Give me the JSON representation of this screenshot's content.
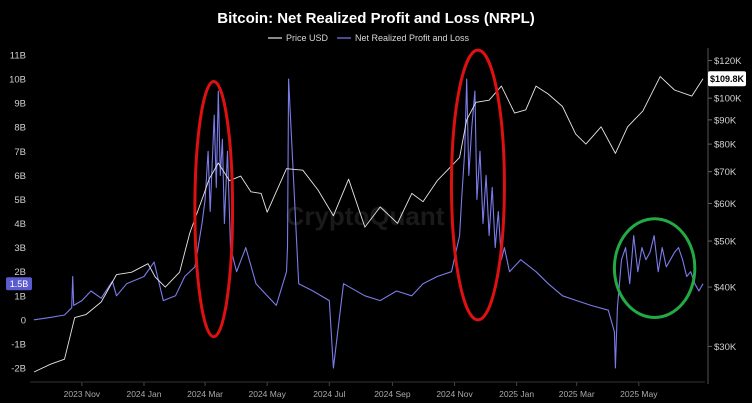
{
  "chart_data": {
    "type": "line",
    "title": "Bitcoin: Net Realized Profit and Loss (NRPL)",
    "watermark": "CryptoQuant",
    "legend": [
      {
        "name": "Price USD",
        "color": "#e6e6e6"
      },
      {
        "name": "Net Realized Profit and Loss",
        "color": "#7b7bea"
      }
    ],
    "legend_position": "top-center",
    "grid": false,
    "y_left": {
      "ticks": [
        "-2B",
        "-1B",
        "0",
        "1B",
        "2B",
        "3B",
        "4B",
        "5B",
        "6B",
        "7B",
        "8B",
        "9B",
        "10B",
        "11B"
      ],
      "tick_values": [
        -2,
        -1,
        0,
        1,
        2,
        3,
        4,
        5,
        6,
        7,
        8,
        9,
        10,
        11
      ],
      "range": [
        -2,
        11
      ],
      "unit": "B"
    },
    "y_right": {
      "ticks": [
        "$30K",
        "$40K",
        "$50K",
        "$60K",
        "$70K",
        "$80K",
        "$90K",
        "$100K",
        "$120K"
      ],
      "tick_values": [
        30,
        40,
        50,
        60,
        70,
        80,
        90,
        100,
        120
      ],
      "range": [
        25,
        130
      ],
      "scale": "log",
      "unit": "K USD"
    },
    "x_axis": {
      "ticks": [
        "2023 Nov",
        "2024 Jan",
        "2024 Mar",
        "2024 May",
        "2024 Jul",
        "2024 Sep",
        "2024 Nov",
        "2025 Jan",
        "2025 Mar",
        "2025 May"
      ],
      "tick_dates": [
        "2023-11",
        "2024-01",
        "2024-03",
        "2024-05",
        "2024-07",
        "2024-09",
        "2024-11",
        "2025-01",
        "2025-03",
        "2025-05"
      ],
      "range": [
        "2023-09-15",
        "2025-07-05"
      ]
    },
    "current_labels": {
      "price": "$109.8K",
      "nrpl": "1.5B"
    },
    "series": [
      {
        "name": "Price USD",
        "color": "#e6e6e6",
        "axis": "right",
        "x": [
          "2023-09-15",
          "2023-10-01",
          "2023-10-15",
          "2023-10-25",
          "2023-11-05",
          "2023-11-20",
          "2023-12-05",
          "2023-12-20",
          "2024-01-05",
          "2024-01-12",
          "2024-01-22",
          "2024-02-05",
          "2024-02-15",
          "2024-02-28",
          "2024-03-05",
          "2024-03-14",
          "2024-03-25",
          "2024-04-05",
          "2024-04-15",
          "2024-04-25",
          "2024-05-01",
          "2024-05-20",
          "2024-06-05",
          "2024-06-20",
          "2024-07-05",
          "2024-07-20",
          "2024-08-05",
          "2024-08-20",
          "2024-09-06",
          "2024-09-20",
          "2024-10-01",
          "2024-10-15",
          "2024-10-29",
          "2024-11-06",
          "2024-11-13",
          "2024-11-22",
          "2024-12-05",
          "2024-12-17",
          "2024-12-30",
          "2025-01-10",
          "2025-01-20",
          "2025-02-01",
          "2025-02-15",
          "2025-02-28",
          "2025-03-10",
          "2025-03-25",
          "2025-04-08",
          "2025-04-20",
          "2025-05-05",
          "2025-05-22",
          "2025-06-05",
          "2025-06-22",
          "2025-07-03"
        ],
        "values": [
          26.5,
          27.5,
          28.2,
          34.5,
          35.0,
          37.2,
          42.5,
          43.0,
          44.8,
          42.0,
          40.0,
          43.0,
          52.0,
          62.0,
          67.5,
          73.0,
          67.0,
          68.5,
          63.5,
          63.0,
          57.5,
          71.0,
          70.5,
          64.0,
          56.5,
          67.5,
          53.5,
          59.0,
          54.5,
          63.0,
          60.5,
          67.0,
          72.0,
          75.0,
          90.0,
          98.0,
          99.0,
          106.0,
          93.0,
          94.5,
          106.0,
          102.0,
          96.0,
          84.0,
          80.0,
          87.0,
          76.5,
          87.0,
          94.0,
          111.0,
          104.0,
          101.0,
          109.8
        ]
      },
      {
        "name": "Net Realized Profit and Loss",
        "color": "#7b7bea",
        "axis": "left",
        "x": [
          "2023-09-15",
          "2023-10-01",
          "2023-10-15",
          "2023-10-22",
          "2023-10-23",
          "2023-10-24",
          "2023-11-01",
          "2023-11-10",
          "2023-11-20",
          "2023-12-01",
          "2023-12-05",
          "2023-12-15",
          "2024-01-01",
          "2024-01-11",
          "2024-01-20",
          "2024-02-01",
          "2024-02-10",
          "2024-02-20",
          "2024-02-27",
          "2024-03-01",
          "2024-03-04",
          "2024-03-06",
          "2024-03-08",
          "2024-03-10",
          "2024-03-12",
          "2024-03-14",
          "2024-03-16",
          "2024-03-18",
          "2024-03-20",
          "2024-03-23",
          "2024-03-26",
          "2024-04-01",
          "2024-04-10",
          "2024-04-20",
          "2024-05-01",
          "2024-05-10",
          "2024-05-20",
          "2024-05-21",
          "2024-05-22",
          "2024-06-01",
          "2024-06-15",
          "2024-07-01",
          "2024-07-05",
          "2024-07-15",
          "2024-08-05",
          "2024-08-20",
          "2024-09-05",
          "2024-09-20",
          "2024-10-01",
          "2024-10-15",
          "2024-10-29",
          "2024-11-06",
          "2024-11-08",
          "2024-11-11",
          "2024-11-13",
          "2024-11-15",
          "2024-11-18",
          "2024-11-21",
          "2024-11-23",
          "2024-11-26",
          "2024-11-29",
          "2024-12-02",
          "2024-12-05",
          "2024-12-08",
          "2024-12-11",
          "2024-12-14",
          "2024-12-17",
          "2024-12-20",
          "2024-12-25",
          "2025-01-05",
          "2025-01-20",
          "2025-02-01",
          "2025-02-15",
          "2025-03-01",
          "2025-03-15",
          "2025-04-01",
          "2025-04-07",
          "2025-04-08",
          "2025-04-10",
          "2025-04-14",
          "2025-04-18",
          "2025-04-22",
          "2025-04-26",
          "2025-04-30",
          "2025-05-04",
          "2025-05-08",
          "2025-05-12",
          "2025-05-16",
          "2025-05-20",
          "2025-05-24",
          "2025-05-28",
          "2025-06-01",
          "2025-06-05",
          "2025-06-09",
          "2025-06-13",
          "2025-06-17",
          "2025-06-21",
          "2025-06-25",
          "2025-06-29",
          "2025-07-03"
        ],
        "values": [
          0.0,
          0.1,
          0.2,
          0.5,
          1.8,
          0.6,
          0.8,
          1.2,
          0.9,
          1.6,
          1.0,
          1.5,
          1.8,
          2.4,
          0.8,
          1.0,
          1.8,
          2.2,
          4.0,
          5.0,
          7.0,
          4.5,
          6.5,
          8.5,
          5.5,
          9.5,
          6.0,
          7.5,
          4.0,
          7.0,
          3.0,
          2.0,
          3.0,
          1.5,
          1.0,
          0.6,
          2.0,
          3.0,
          10.0,
          1.5,
          1.2,
          0.8,
          -2.0,
          1.5,
          1.0,
          0.8,
          1.2,
          1.0,
          1.5,
          1.8,
          2.0,
          3.5,
          5.0,
          7.0,
          10.0,
          6.0,
          8.0,
          9.5,
          5.0,
          7.0,
          4.0,
          6.0,
          3.5,
          5.5,
          3.0,
          4.5,
          2.5,
          3.0,
          2.0,
          2.5,
          2.0,
          1.5,
          1.0,
          0.8,
          0.6,
          0.4,
          -0.5,
          -2.0,
          0.5,
          2.5,
          3.0,
          1.5,
          3.5,
          2.0,
          3.0,
          2.5,
          2.8,
          3.5,
          2.0,
          3.0,
          2.2,
          2.5,
          2.8,
          3.0,
          2.5,
          1.8,
          2.0,
          1.5,
          1.2,
          1.5
        ]
      }
    ],
    "annotations": [
      {
        "shape": "ellipse",
        "color": "#dd1111",
        "x_range": [
          "2024-02-20",
          "2024-03-28"
        ],
        "y_range": [
          -0.7,
          9.9
        ]
      },
      {
        "shape": "ellipse",
        "color": "#dd1111",
        "x_range": [
          "2024-10-29",
          "2024-12-20"
        ],
        "y_range": [
          0.0,
          11.2
        ]
      },
      {
        "shape": "ellipse",
        "color": "#22aa44",
        "x_range": [
          "2025-04-07",
          "2025-06-25"
        ],
        "y_range": [
          0.1,
          4.2
        ]
      }
    ]
  }
}
